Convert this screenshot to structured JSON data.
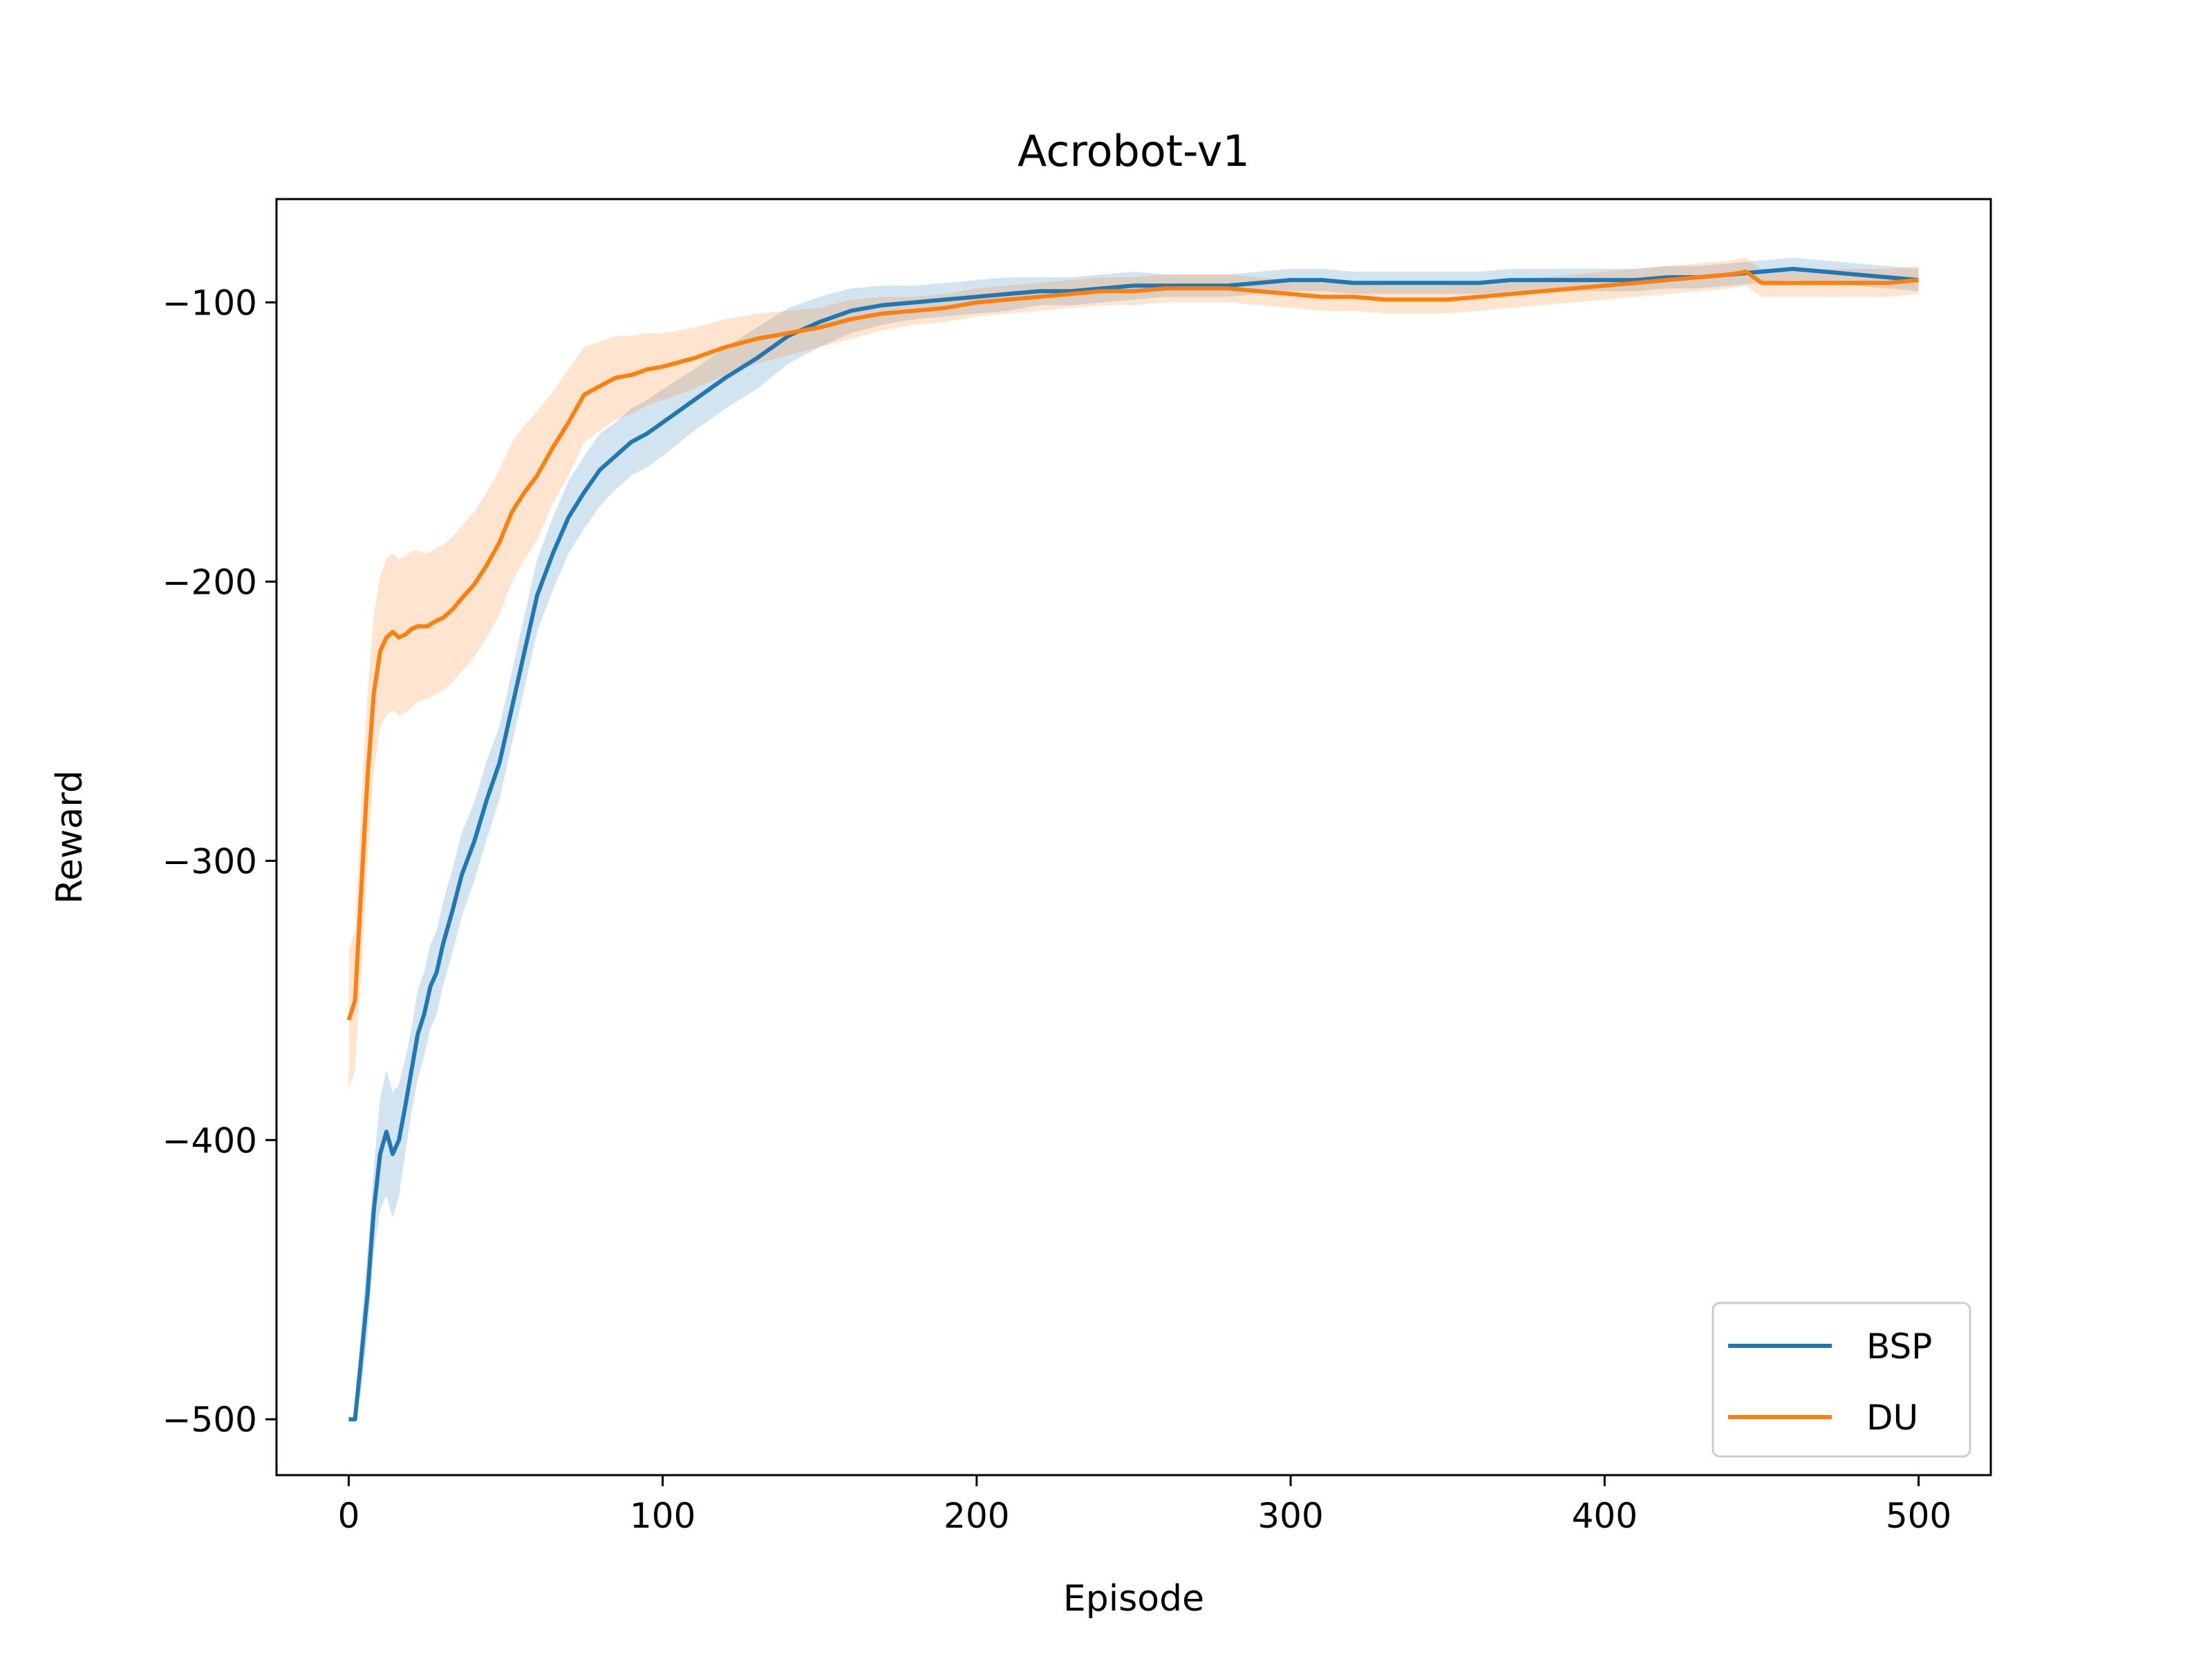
{
  "chart_data": {
    "type": "line",
    "title": "Acrobot-v1",
    "xlabel": "Episode",
    "ylabel": "Reward",
    "xlim": [
      -23,
      523
    ],
    "ylim": [
      -520,
      -63
    ],
    "xticks": [
      0,
      100,
      200,
      300,
      400,
      500
    ],
    "xtick_labels": [
      "0",
      "100",
      "200",
      "300",
      "400",
      "500"
    ],
    "yticks": [
      -500,
      -400,
      -300,
      -200,
      -100
    ],
    "ytick_labels": [
      "−500",
      "−400",
      "−300",
      "−200",
      "−100"
    ],
    "legend_position": "lower-right",
    "grid": false,
    "series": [
      {
        "name": "BSP",
        "color": "#1f77b4",
        "x": [
          0,
          2,
          4,
          6,
          8,
          10,
          12,
          14,
          16,
          18,
          20,
          22,
          24,
          26,
          28,
          30,
          33,
          36,
          40,
          44,
          48,
          52,
          56,
          60,
          65,
          70,
          75,
          80,
          85,
          90,
          95,
          100,
          110,
          120,
          130,
          140,
          150,
          160,
          170,
          180,
          190,
          200,
          210,
          220,
          230,
          240,
          250,
          260,
          270,
          280,
          290,
          300,
          310,
          320,
          330,
          340,
          350,
          360,
          370,
          380,
          390,
          400,
          410,
          420,
          430,
          440,
          450,
          460,
          470,
          480,
          490,
          500
        ],
        "y": [
          -500,
          -500,
          -478,
          -455,
          -425,
          -405,
          -397,
          -405,
          -400,
          -388,
          -375,
          -362,
          -355,
          -345,
          -340,
          -330,
          -318,
          -305,
          -293,
          -278,
          -265,
          -245,
          -225,
          -205,
          -190,
          -177,
          -168,
          -160,
          -155,
          -150,
          -147,
          -143,
          -135,
          -127,
          -120,
          -112,
          -107,
          -103,
          -101,
          -100,
          -99,
          -98,
          -97,
          -96,
          -96,
          -95,
          -94,
          -94,
          -94,
          -94,
          -93,
          -92,
          -92,
          -93,
          -93,
          -93,
          -93,
          -93,
          -92,
          -92,
          -92,
          -92,
          -92,
          -91,
          -91,
          -90,
          -89,
          -88,
          -89,
          -90,
          -91,
          -92
        ],
        "lower": [
          -500,
          -500,
          -490,
          -470,
          -440,
          -425,
          -420,
          -428,
          -420,
          -405,
          -390,
          -378,
          -370,
          -360,
          -355,
          -345,
          -333,
          -320,
          -307,
          -292,
          -278,
          -258,
          -238,
          -218,
          -203,
          -190,
          -181,
          -173,
          -167,
          -162,
          -159,
          -155,
          -146,
          -138,
          -131,
          -122,
          -116,
          -111,
          -108,
          -106,
          -105,
          -104,
          -103,
          -101,
          -101,
          -100,
          -99,
          -98,
          -98,
          -98,
          -97,
          -96,
          -96,
          -97,
          -97,
          -97,
          -97,
          -97,
          -96,
          -96,
          -96,
          -96,
          -96,
          -95,
          -95,
          -94,
          -93,
          -92,
          -93,
          -94,
          -95,
          -96
        ],
        "upper": [
          -500,
          -500,
          -466,
          -440,
          -410,
          -385,
          -375,
          -383,
          -380,
          -371,
          -360,
          -346,
          -340,
          -330,
          -325,
          -315,
          -303,
          -290,
          -279,
          -264,
          -252,
          -232,
          -212,
          -192,
          -177,
          -164,
          -155,
          -147,
          -143,
          -138,
          -135,
          -131,
          -124,
          -116,
          -109,
          -102,
          -98,
          -95,
          -94,
          -94,
          -93,
          -92,
          -91,
          -91,
          -91,
          -90,
          -89,
          -90,
          -90,
          -90,
          -89,
          -88,
          -88,
          -89,
          -89,
          -89,
          -89,
          -89,
          -88,
          -88,
          -88,
          -88,
          -88,
          -87,
          -87,
          -86,
          -85,
          -84,
          -85,
          -86,
          -87,
          -88
        ]
      },
      {
        "name": "DU",
        "color": "#ff7f0e",
        "x": [
          0,
          2,
          4,
          6,
          8,
          10,
          12,
          14,
          16,
          18,
          20,
          22,
          25,
          28,
          30,
          33,
          36,
          40,
          44,
          48,
          52,
          56,
          60,
          65,
          70,
          75,
          80,
          85,
          90,
          95,
          100,
          110,
          120,
          130,
          140,
          150,
          160,
          170,
          180,
          190,
          200,
          210,
          220,
          230,
          240,
          250,
          260,
          270,
          280,
          290,
          300,
          310,
          320,
          330,
          340,
          350,
          360,
          370,
          380,
          390,
          400,
          410,
          420,
          430,
          440,
          445,
          450,
          460,
          470,
          480,
          490,
          500
        ],
        "y": [
          -357,
          -350,
          -310,
          -270,
          -240,
          -225,
          -220,
          -218,
          -220,
          -219,
          -217,
          -216,
          -216,
          -214,
          -213,
          -210,
          -206,
          -201,
          -194,
          -186,
          -175,
          -168,
          -162,
          -152,
          -143,
          -133,
          -130,
          -127,
          -126,
          -124,
          -123,
          -120,
          -116,
          -113,
          -111,
          -109,
          -106,
          -104,
          -103,
          -102,
          -100,
          -99,
          -98,
          -97,
          -96,
          -96,
          -95,
          -95,
          -95,
          -96,
          -97,
          -98,
          -98,
          -99,
          -99,
          -99,
          -98,
          -97,
          -96,
          -95,
          -94,
          -93,
          -92,
          -91,
          -90,
          -89,
          -93,
          -93,
          -93,
          -93,
          -93,
          -92
        ],
        "lower": [
          -382,
          -375,
          -340,
          -300,
          -268,
          -252,
          -248,
          -246,
          -248,
          -247,
          -245,
          -243,
          -242,
          -240,
          -239,
          -236,
          -232,
          -227,
          -220,
          -212,
          -200,
          -192,
          -185,
          -172,
          -162,
          -150,
          -146,
          -142,
          -140,
          -137,
          -135,
          -131,
          -126,
          -122,
          -119,
          -116,
          -113,
          -110,
          -108,
          -107,
          -105,
          -104,
          -103,
          -102,
          -101,
          -101,
          -100,
          -100,
          -100,
          -101,
          -102,
          -103,
          -103,
          -104,
          -104,
          -104,
          -103,
          -102,
          -101,
          -100,
          -99,
          -98,
          -97,
          -96,
          -95,
          -94,
          -98,
          -98,
          -98,
          -98,
          -98,
          -97
        ],
        "upper": [
          -332,
          -325,
          -280,
          -240,
          -212,
          -198,
          -192,
          -190,
          -192,
          -191,
          -189,
          -189,
          -190,
          -188,
          -187,
          -184,
          -180,
          -175,
          -168,
          -160,
          -150,
          -144,
          -139,
          -132,
          -124,
          -116,
          -114,
          -112,
          -112,
          -111,
          -111,
          -109,
          -106,
          -104,
          -103,
          -102,
          -99,
          -98,
          -98,
          -97,
          -95,
          -94,
          -93,
          -92,
          -91,
          -91,
          -90,
          -90,
          -90,
          -91,
          -92,
          -93,
          -93,
          -94,
          -94,
          -94,
          -93,
          -92,
          -91,
          -90,
          -89,
          -88,
          -87,
          -86,
          -85,
          -84,
          -88,
          -88,
          -88,
          -88,
          -88,
          -87
        ]
      }
    ]
  }
}
